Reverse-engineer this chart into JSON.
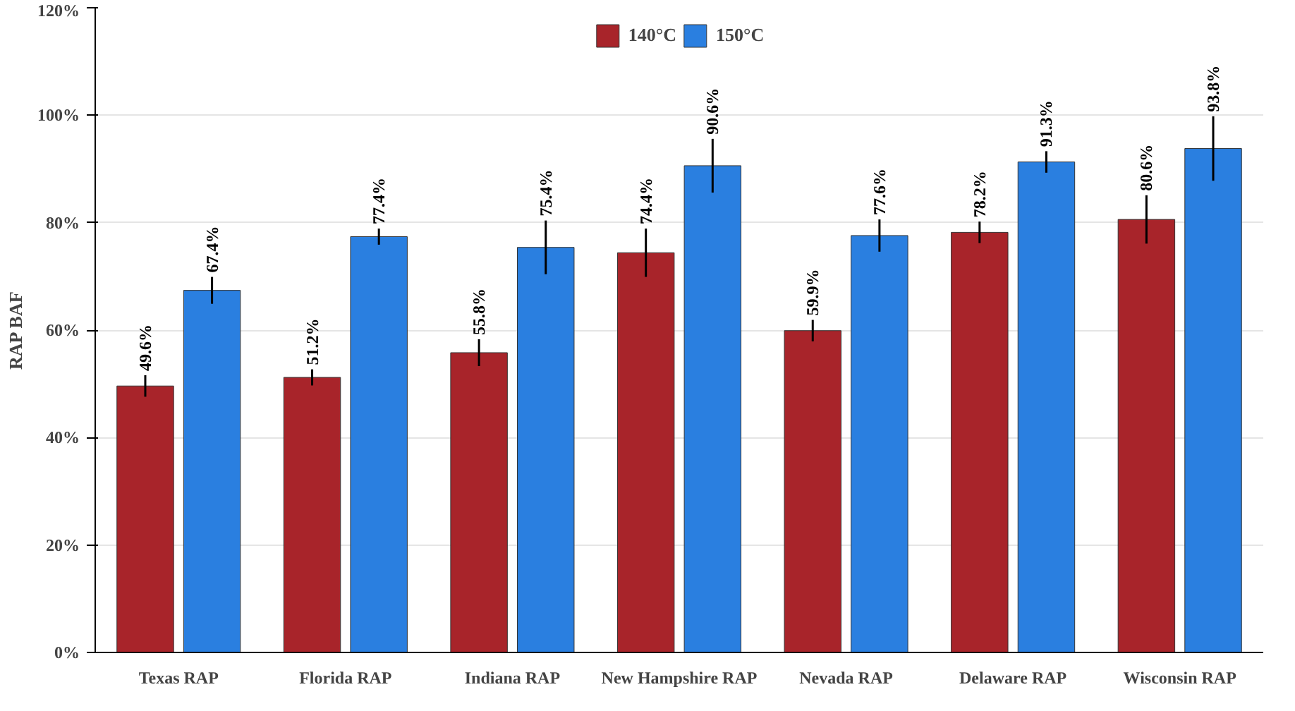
{
  "chart_data": {
    "type": "bar",
    "ylabel": "RAP BAF",
    "categories": [
      "Texas RAP",
      "Florida RAP",
      "Indiana RAP",
      "New Hampshire RAP",
      "Nevada RAP",
      "Delaware RAP",
      "Wisconsin RAP"
    ],
    "series": [
      {
        "name": "140°C",
        "color": "#a8242a",
        "values": [
          49.6,
          51.2,
          55.8,
          74.4,
          59.9,
          78.2,
          80.6
        ],
        "errors": [
          2,
          1.5,
          2.5,
          4.5,
          2,
          2,
          4.5
        ],
        "value_labels": [
          "49.6%",
          "51.2%",
          "55.8%",
          "74.4%",
          "59.9%",
          "78.2%",
          "80.6%"
        ]
      },
      {
        "name": "150°C",
        "color": "#2a7fe0",
        "values": [
          67.4,
          77.4,
          75.4,
          90.6,
          77.6,
          91.3,
          93.8
        ],
        "errors": [
          2.5,
          1.5,
          5,
          5,
          3,
          2,
          6
        ],
        "value_labels": [
          "67.4%",
          "77.4%",
          "75.4%",
          "90.6%",
          "77.6%",
          "91.3%",
          "93.8%"
        ]
      }
    ],
    "ylim": [
      0,
      120
    ],
    "yticks": [
      {
        "value": 0,
        "label": "0%"
      },
      {
        "value": 20,
        "label": "20%"
      },
      {
        "value": 40,
        "label": "40%"
      },
      {
        "value": 60,
        "label": "60%"
      },
      {
        "value": 80,
        "label": "80%"
      },
      {
        "value": 100,
        "label": "100%"
      },
      {
        "value": 120,
        "label": "120%"
      }
    ],
    "grid": "y",
    "legend": "top"
  }
}
